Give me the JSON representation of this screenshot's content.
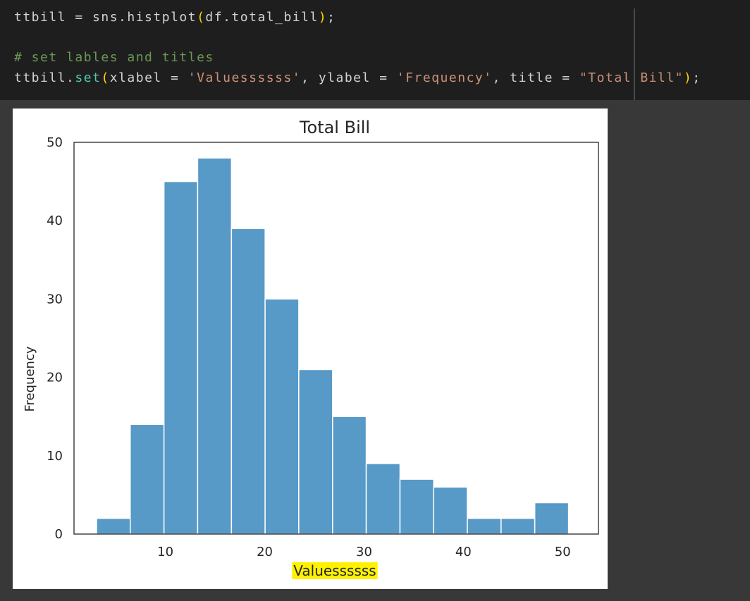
{
  "code_cell": {
    "line1": {
      "var": "ttbill = sns.histplot",
      "open": "(",
      "args": "df.total_bill",
      "close": ")",
      "end": ";"
    },
    "line2": {
      "comment": "# set lables and titles"
    },
    "line3": {
      "prefix": "ttbill.",
      "method": "set",
      "open": "(",
      "arg1": "xlabel = ",
      "str1": "'Valuessssss'",
      "sep1": ", ylabel = ",
      "str2": "'Frequency'",
      "sep2": ", title = ",
      "str3": "\"Total Bill\"",
      "close": ")",
      "end": ";"
    }
  },
  "chart_data": {
    "type": "bar",
    "title": "Total Bill",
    "xlabel": "Valuessssss",
    "ylabel": "Frequency",
    "xlim": [
      0.8,
      53.6
    ],
    "ylim": [
      0,
      50
    ],
    "xticks": [
      10,
      20,
      30,
      40,
      50
    ],
    "yticks": [
      0,
      10,
      20,
      30,
      40,
      50
    ],
    "bin_edges": [
      3.07,
      6.46,
      9.86,
      13.25,
      16.65,
      20.04,
      23.43,
      26.83,
      30.22,
      33.62,
      37.01,
      40.4,
      43.8,
      47.19,
      50.59
    ],
    "values": [
      2,
      14,
      45,
      48,
      39,
      30,
      21,
      15,
      9,
      7,
      6,
      2,
      2,
      4
    ],
    "bar_color": "#5799c7",
    "grid": false,
    "xlabel_highlight": "#fff200"
  }
}
